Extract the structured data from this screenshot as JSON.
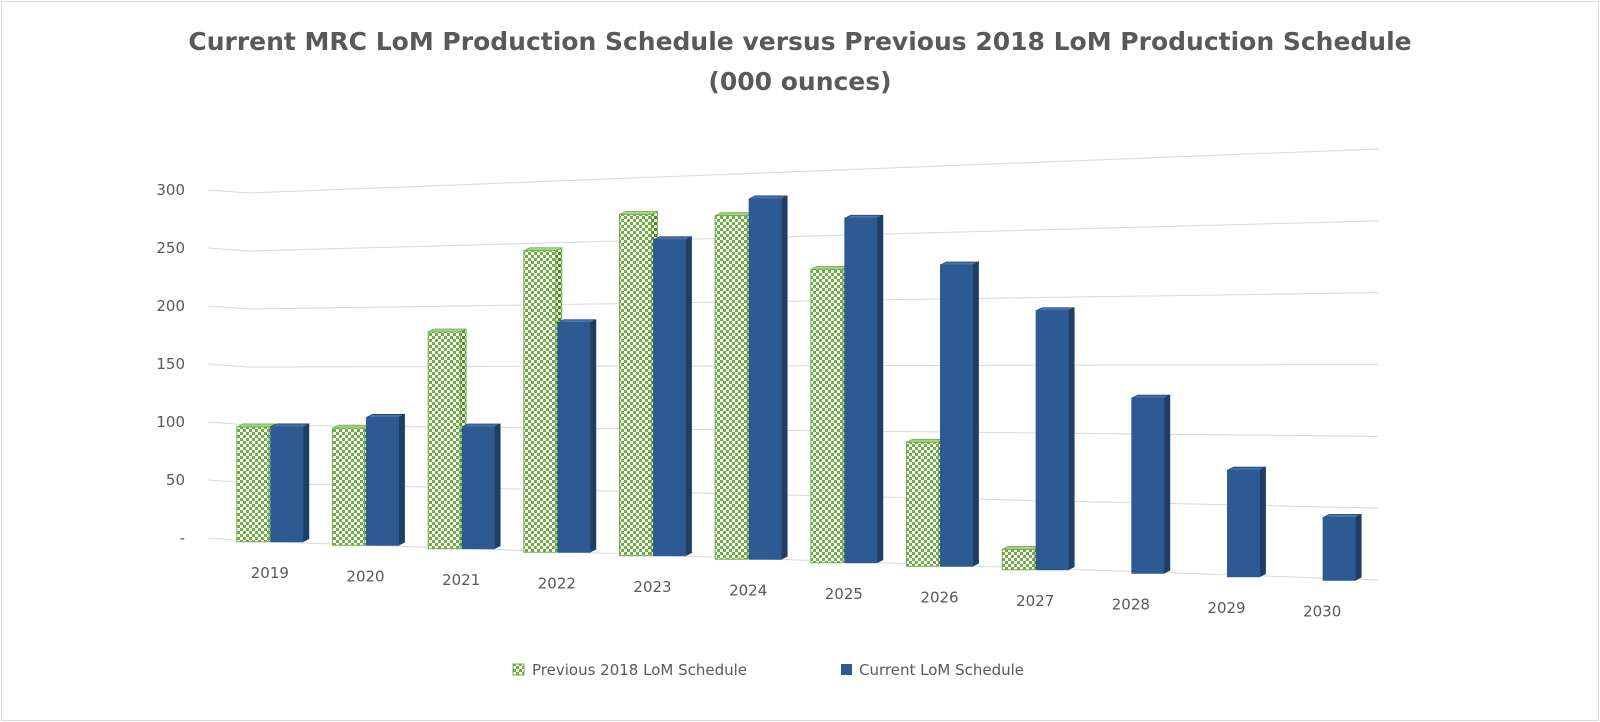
{
  "chart_data": {
    "type": "bar",
    "title": "Current MRC LoM Production Schedule versus Previous 2018 LoM Production Schedule",
    "subtitle": "(000 ounces)",
    "categories": [
      "2019",
      "2020",
      "2021",
      "2022",
      "2023",
      "2024",
      "2025",
      "2026",
      "2027",
      "2028",
      "2029",
      "2030"
    ],
    "series": [
      {
        "name": "Previous 2018 LoM Schedule",
        "color": "#70ad47",
        "pattern": "green-check",
        "values": [
          98,
          98,
          178,
          243,
          270,
          267,
          224,
          93,
          15,
          0,
          0,
          0
        ]
      },
      {
        "name": "Current LoM Schedule",
        "color": "#2e5a94",
        "pattern": "solid",
        "values": [
          98,
          107,
          100,
          185,
          250,
          280,
          263,
          226,
          191,
          127,
          76,
          44
        ]
      }
    ],
    "y_tick_labels": [
      "-",
      "50",
      "100",
      "150",
      "200",
      "250",
      "300"
    ],
    "ylim": [
      0,
      300
    ],
    "grid": true,
    "legend_position": "bottom",
    "perspective": "3d"
  }
}
